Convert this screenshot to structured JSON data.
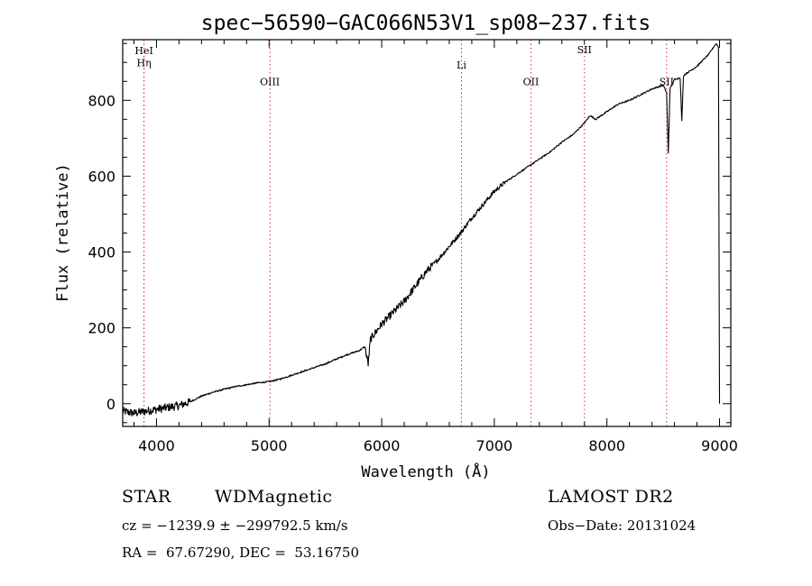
{
  "chart_data": {
    "type": "line",
    "title": "spec−56590−GAC066N53V1_sp08−237.fits",
    "xlabel": "Wavelength (Å)",
    "ylabel": "Flux (relative)",
    "xlim": [
      3700,
      9100
    ],
    "ylim": [
      -60,
      960
    ],
    "xticks": [
      4000,
      5000,
      6000,
      7000,
      8000,
      9000
    ],
    "yticks": [
      0,
      200,
      400,
      600,
      800
    ],
    "series": [
      {
        "values_x": [
          3700,
          3800,
          3900,
          4000,
          4100,
          4200,
          4300,
          4400,
          4500,
          4600,
          4700,
          4800,
          4900,
          5000,
          5100,
          5200,
          5300,
          5400,
          5500,
          5600,
          5700,
          5800,
          5850,
          5880,
          5900,
          5950,
          6000,
          6100,
          6200,
          6300,
          6400,
          6500,
          6600,
          6700,
          6800,
          6900,
          7000,
          7100,
          7200,
          7300,
          7400,
          7500,
          7600,
          7700,
          7800,
          7850,
          7900,
          8000,
          8100,
          8200,
          8300,
          8400,
          8500,
          8530,
          8545,
          8560,
          8600,
          8650,
          8665,
          8680,
          8700,
          8800,
          8900,
          8970,
          8990,
          9000
        ],
        "values_y": [
          -20,
          -25,
          -20,
          -15,
          -10,
          -5,
          5,
          20,
          30,
          38,
          45,
          50,
          55,
          58,
          65,
          75,
          85,
          95,
          105,
          118,
          130,
          140,
          150,
          105,
          170,
          190,
          210,
          240,
          270,
          310,
          350,
          380,
          415,
          450,
          490,
          525,
          560,
          585,
          605,
          625,
          645,
          665,
          690,
          710,
          740,
          760,
          750,
          770,
          790,
          800,
          815,
          830,
          840,
          820,
          660,
          830,
          855,
          860,
          745,
          865,
          870,
          890,
          920,
          950,
          940,
          0
        ]
      }
    ],
    "spectral_lines": [
      {
        "name": "Hη",
        "x": 3889,
        "label_y": 890
      },
      {
        "name": "HeI",
        "x": 3889,
        "label_y": 922
      },
      {
        "name": "OIII",
        "x": 5007,
        "label_y": 840
      },
      {
        "name": "Li",
        "x": 6708,
        "label_y": 884
      },
      {
        "name": "OII",
        "x": 7325,
        "label_y": 840
      },
      {
        "name": "SII",
        "x": 7800,
        "label_y": 924
      },
      {
        "name": "SII",
        "x": 8530,
        "label_y": 840
      }
    ],
    "grid": false,
    "legend": "none"
  },
  "info": {
    "object_class": "STAR",
    "subclass": "WDMagnetic",
    "survey": "LAMOST DR2",
    "cz": "cz = −1239.9 ± −299792.5 km/s",
    "obs_date": "Obs−Date: 20131024",
    "coords": "RA =  67.67290, DEC =  53.16750"
  }
}
